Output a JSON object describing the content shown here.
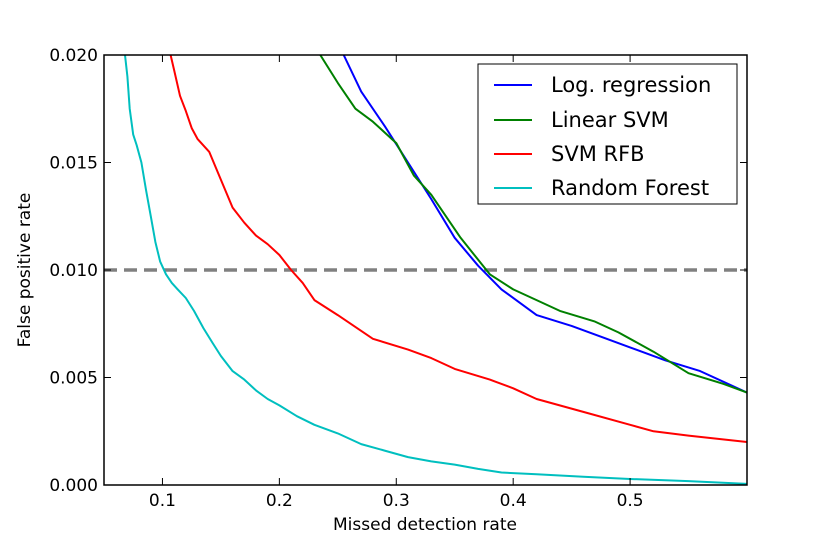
{
  "chart_data": {
    "type": "line",
    "title": "",
    "xlabel": "Missed detection rate",
    "ylabel": "False positive rate",
    "xlim": [
      0.05,
      0.6
    ],
    "ylim": [
      0.0,
      0.02
    ],
    "xticks": [
      0.1,
      0.2,
      0.3,
      0.4,
      0.5
    ],
    "xtick_labels": [
      "0.1",
      "0.2",
      "0.3",
      "0.4",
      "0.5"
    ],
    "yticks": [
      0.0,
      0.005,
      0.01,
      0.015,
      0.02
    ],
    "ytick_labels": [
      "0.000",
      "0.005",
      "0.010",
      "0.015",
      "0.020"
    ],
    "grid": false,
    "legend_position": "top-right",
    "reference_line": {
      "y": 0.01,
      "color": "#808080",
      "style": "dashed"
    },
    "series": [
      {
        "name": "Log. regression",
        "color": "#0000ff",
        "x": [
          0.255,
          0.27,
          0.29,
          0.31,
          0.33,
          0.35,
          0.37,
          0.39,
          0.42,
          0.45,
          0.48,
          0.5,
          0.53,
          0.56,
          0.6
        ],
        "y": [
          0.02,
          0.0183,
          0.0167,
          0.015,
          0.0133,
          0.0115,
          0.0102,
          0.0091,
          0.0079,
          0.0074,
          0.0068,
          0.0064,
          0.0058,
          0.0053,
          0.0043
        ]
      },
      {
        "name": "Linear SVM",
        "color": "#008000",
        "x": [
          0.235,
          0.25,
          0.265,
          0.28,
          0.3,
          0.315,
          0.33,
          0.355,
          0.38,
          0.4,
          0.42,
          0.44,
          0.47,
          0.49,
          0.52,
          0.55,
          0.58,
          0.6
        ],
        "y": [
          0.02,
          0.0187,
          0.0175,
          0.0169,
          0.0159,
          0.0144,
          0.0135,
          0.0115,
          0.0098,
          0.0091,
          0.0086,
          0.0081,
          0.0076,
          0.0071,
          0.0062,
          0.0052,
          0.0047,
          0.0043
        ]
      },
      {
        "name": "SVM RFB",
        "color": "#ff0000",
        "x": [
          0.107,
          0.11,
          0.115,
          0.12,
          0.125,
          0.13,
          0.14,
          0.15,
          0.16,
          0.17,
          0.18,
          0.19,
          0.2,
          0.21,
          0.22,
          0.23,
          0.25,
          0.28,
          0.31,
          0.33,
          0.35,
          0.38,
          0.4,
          0.42,
          0.46,
          0.5,
          0.52,
          0.55,
          0.6
        ],
        "y": [
          0.02,
          0.0193,
          0.0181,
          0.0174,
          0.0166,
          0.0161,
          0.0155,
          0.0142,
          0.0129,
          0.0122,
          0.0116,
          0.0112,
          0.0107,
          0.01,
          0.0094,
          0.0086,
          0.0079,
          0.0068,
          0.0063,
          0.0059,
          0.0054,
          0.0049,
          0.0045,
          0.004,
          0.0034,
          0.0028,
          0.0025,
          0.0023,
          0.002
        ]
      },
      {
        "name": "Random Forest",
        "color": "#00bfbf",
        "x": [
          0.068,
          0.07,
          0.072,
          0.075,
          0.078,
          0.082,
          0.086,
          0.09,
          0.094,
          0.098,
          0.103,
          0.108,
          0.113,
          0.12,
          0.127,
          0.135,
          0.143,
          0.15,
          0.16,
          0.17,
          0.18,
          0.19,
          0.2,
          0.215,
          0.23,
          0.25,
          0.27,
          0.29,
          0.31,
          0.33,
          0.35,
          0.37,
          0.39,
          0.42,
          0.46,
          0.5,
          0.55,
          0.6
        ],
        "y": [
          0.02,
          0.019,
          0.0175,
          0.0163,
          0.0158,
          0.015,
          0.0137,
          0.0125,
          0.0113,
          0.0104,
          0.0098,
          0.0094,
          0.0091,
          0.0087,
          0.0081,
          0.0073,
          0.0066,
          0.006,
          0.0053,
          0.0049,
          0.0044,
          0.004,
          0.0037,
          0.0032,
          0.0028,
          0.0024,
          0.0019,
          0.0016,
          0.0013,
          0.0011,
          0.00095,
          0.00075,
          0.00058,
          0.0005,
          0.00038,
          0.00028,
          0.00018,
          5e-05
        ]
      }
    ]
  }
}
